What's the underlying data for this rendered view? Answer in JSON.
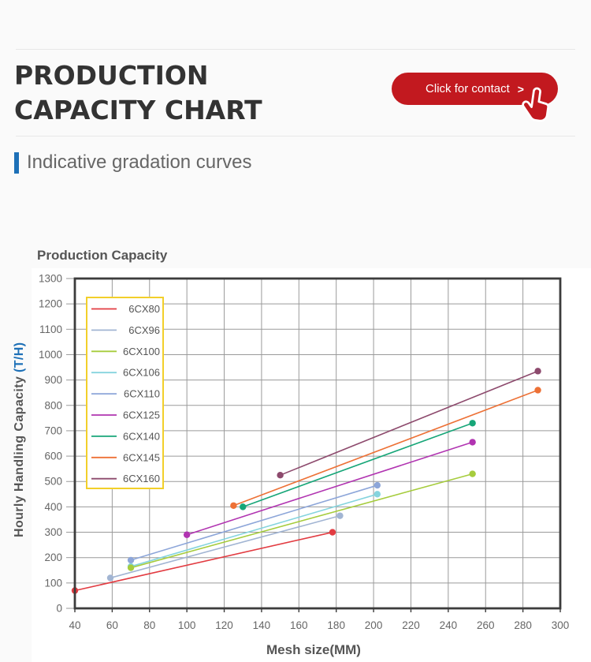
{
  "page": {
    "background": "#fafafa"
  },
  "header": {
    "title_line1": "PRODUCTION",
    "title_line2": "CAPACITY CHART",
    "contact_button": {
      "label": "Click for contact",
      "chevron": ">",
      "color": "#c2191f"
    }
  },
  "section": {
    "title": "Indicative gradation curves",
    "accent_color": "#1d70b7"
  },
  "chart_data": {
    "type": "line",
    "title": "Production Capacity",
    "xlabel": "Mesh size(MM)",
    "ylabel": "Hourly Handling Capacity",
    "ylabel_unit": "(T/H)",
    "xlim": [
      40,
      300
    ],
    "ylim": [
      0,
      1300
    ],
    "x_ticks": [
      40,
      60,
      80,
      100,
      120,
      140,
      160,
      180,
      200,
      220,
      240,
      260,
      280,
      300
    ],
    "y_ticks": [
      0,
      100,
      200,
      300,
      400,
      500,
      600,
      700,
      800,
      900,
      1000,
      1100,
      1200,
      1300
    ],
    "grid": true,
    "legend_position": "upper-left",
    "legend_border_color": "#f2cf2a",
    "grid_color": "#9a9a9a",
    "border_color": "#3c3c3c",
    "series": [
      {
        "name": "6CX80",
        "color": "#e23b41",
        "points": [
          [
            40,
            70
          ],
          [
            178,
            300
          ]
        ]
      },
      {
        "name": "6CX96",
        "color": "#a2b5d3",
        "points": [
          [
            59,
            120
          ],
          [
            182,
            365
          ]
        ]
      },
      {
        "name": "6CX100",
        "color": "#a6cc3d",
        "points": [
          [
            70,
            160
          ],
          [
            253,
            530
          ]
        ]
      },
      {
        "name": "6CX106",
        "color": "#85d4de",
        "points": [
          [
            70,
            165
          ],
          [
            202,
            450
          ]
        ]
      },
      {
        "name": "6CX110",
        "color": "#8da6d9",
        "points": [
          [
            70,
            190
          ],
          [
            202,
            485
          ]
        ]
      },
      {
        "name": "6CX125",
        "color": "#b134b1",
        "points": [
          [
            100,
            290
          ],
          [
            253,
            655
          ]
        ]
      },
      {
        "name": "6CX140",
        "color": "#17a678",
        "points": [
          [
            130,
            400
          ],
          [
            253,
            730
          ]
        ]
      },
      {
        "name": "6CX145",
        "color": "#ed7136",
        "points": [
          [
            125,
            405
          ],
          [
            288,
            860
          ]
        ]
      },
      {
        "name": "6CX160",
        "color": "#8d4a6d",
        "points": [
          [
            150,
            525
          ],
          [
            288,
            935
          ]
        ]
      }
    ]
  }
}
